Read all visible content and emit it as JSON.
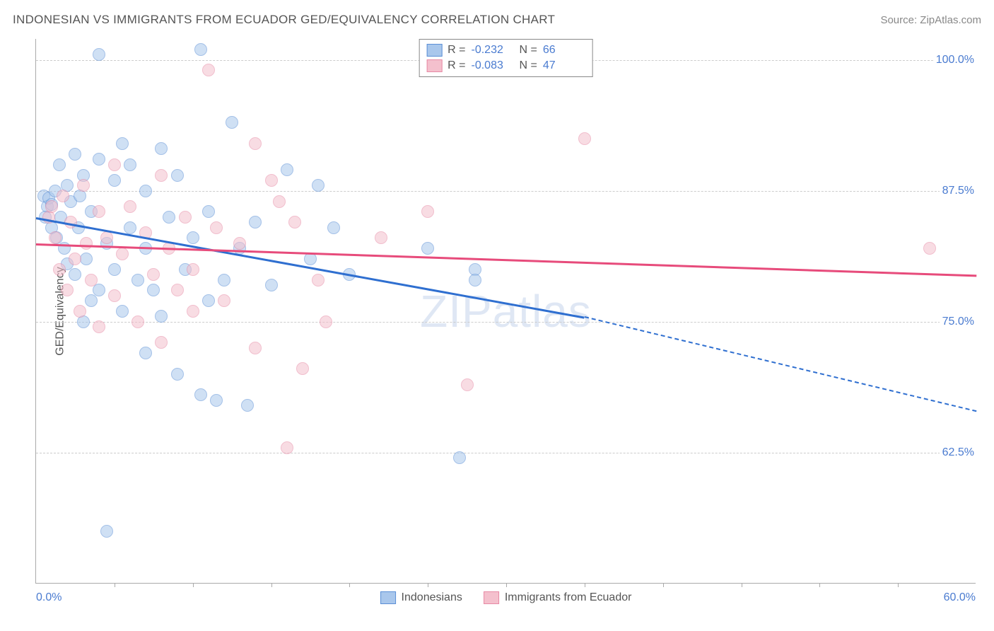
{
  "title": "INDONESIAN VS IMMIGRANTS FROM ECUADOR GED/EQUIVALENCY CORRELATION CHART",
  "source_label": "Source: ZipAtlas.com",
  "watermark": "ZIPatlas",
  "chart": {
    "type": "scatter",
    "yaxis_title": "GED/Equivalency",
    "xlim": [
      0.0,
      60.0
    ],
    "ylim": [
      50.0,
      102.0
    ],
    "xlim_labels": [
      "0.0%",
      "60.0%"
    ],
    "ytick_labels": [
      "62.5%",
      "75.0%",
      "87.5%",
      "100.0%"
    ],
    "ytick_values": [
      62.5,
      75.0,
      87.5,
      100.0
    ],
    "xtick_values": [
      5,
      10,
      15,
      20,
      25,
      30,
      35,
      40,
      45,
      50,
      55
    ],
    "grid_color": "#cccccc",
    "background_color": "#ffffff",
    "axis_color": "#aaaaaa",
    "label_color": "#4a7bd0",
    "title_color": "#555555",
    "title_fontsize": 17,
    "label_fontsize": 16,
    "marker_radius": 9,
    "marker_opacity": 0.55
  },
  "series": [
    {
      "name": "Indonesians",
      "fill_color": "#a9c7ec",
      "stroke_color": "#5b8fd6",
      "trend_color": "#2f6fd0",
      "R": "-0.232",
      "N": "66",
      "trend": {
        "x1": 0.0,
        "y1": 85.0,
        "x2_solid": 35.0,
        "y2_solid": 75.5,
        "x2": 60.0,
        "y2": 66.5
      },
      "points": [
        [
          0.5,
          87.0
        ],
        [
          0.7,
          86.0
        ],
        [
          0.8,
          86.8
        ],
        [
          0.6,
          85.0
        ],
        [
          1.0,
          86.2
        ],
        [
          1.0,
          84.0
        ],
        [
          1.2,
          87.5
        ],
        [
          1.3,
          83.0
        ],
        [
          1.5,
          90.0
        ],
        [
          1.6,
          85.0
        ],
        [
          1.8,
          82.0
        ],
        [
          2.0,
          88.0
        ],
        [
          2.0,
          80.5
        ],
        [
          2.2,
          86.5
        ],
        [
          2.5,
          79.5
        ],
        [
          2.5,
          91.0
        ],
        [
          2.7,
          84.0
        ],
        [
          2.8,
          87.0
        ],
        [
          3.0,
          75.0
        ],
        [
          3.0,
          89.0
        ],
        [
          3.2,
          81.0
        ],
        [
          3.5,
          77.0
        ],
        [
          3.5,
          85.5
        ],
        [
          4.0,
          90.5
        ],
        [
          4.0,
          78.0
        ],
        [
          4.0,
          100.5
        ],
        [
          4.5,
          82.5
        ],
        [
          4.5,
          55.0
        ],
        [
          5.0,
          88.5
        ],
        [
          5.0,
          80.0
        ],
        [
          5.5,
          92.0
        ],
        [
          5.5,
          76.0
        ],
        [
          6.0,
          84.0
        ],
        [
          6.0,
          90.0
        ],
        [
          6.5,
          79.0
        ],
        [
          7.0,
          82.0
        ],
        [
          7.0,
          87.5
        ],
        [
          7.0,
          72.0
        ],
        [
          7.5,
          78.0
        ],
        [
          8.0,
          91.5
        ],
        [
          8.0,
          75.5
        ],
        [
          8.5,
          85.0
        ],
        [
          9.0,
          89.0
        ],
        [
          9.0,
          70.0
        ],
        [
          9.5,
          80.0
        ],
        [
          10.0,
          83.0
        ],
        [
          10.5,
          101.0
        ],
        [
          10.5,
          68.0
        ],
        [
          11.0,
          77.0
        ],
        [
          11.0,
          85.5
        ],
        [
          11.5,
          67.5
        ],
        [
          12.0,
          79.0
        ],
        [
          12.5,
          94.0
        ],
        [
          13.0,
          82.0
        ],
        [
          13.5,
          67.0
        ],
        [
          14.0,
          84.5
        ],
        [
          15.0,
          78.5
        ],
        [
          16.0,
          89.5
        ],
        [
          17.5,
          81.0
        ],
        [
          18.0,
          88.0
        ],
        [
          19.0,
          84.0
        ],
        [
          20.0,
          79.5
        ],
        [
          25.0,
          82.0
        ],
        [
          27.0,
          62.0
        ],
        [
          28.0,
          80.0
        ],
        [
          28.0,
          79.0
        ]
      ]
    },
    {
      "name": "Immigrants from Ecuador",
      "fill_color": "#f4c0cd",
      "stroke_color": "#e78aa5",
      "trend_color": "#e74b7b",
      "R": "-0.083",
      "N": "47",
      "trend": {
        "x1": 0.0,
        "y1": 82.5,
        "x2_solid": 60.0,
        "y2_solid": 79.5,
        "x2": 60.0,
        "y2": 79.5
      },
      "points": [
        [
          0.8,
          85.0
        ],
        [
          1.0,
          86.0
        ],
        [
          1.2,
          83.0
        ],
        [
          1.5,
          80.0
        ],
        [
          1.7,
          87.0
        ],
        [
          2.0,
          78.0
        ],
        [
          2.2,
          84.5
        ],
        [
          2.5,
          81.0
        ],
        [
          2.8,
          76.0
        ],
        [
          3.0,
          88.0
        ],
        [
          3.2,
          82.5
        ],
        [
          3.5,
          79.0
        ],
        [
          4.0,
          85.5
        ],
        [
          4.0,
          74.5
        ],
        [
          4.5,
          83.0
        ],
        [
          5.0,
          90.0
        ],
        [
          5.0,
          77.5
        ],
        [
          5.5,
          81.5
        ],
        [
          6.0,
          86.0
        ],
        [
          6.5,
          75.0
        ],
        [
          7.0,
          83.5
        ],
        [
          7.5,
          79.5
        ],
        [
          8.0,
          89.0
        ],
        [
          8.0,
          73.0
        ],
        [
          8.5,
          82.0
        ],
        [
          9.0,
          78.0
        ],
        [
          9.5,
          85.0
        ],
        [
          10.0,
          80.0
        ],
        [
          10.0,
          76.0
        ],
        [
          11.0,
          99.0
        ],
        [
          11.5,
          84.0
        ],
        [
          12.0,
          77.0
        ],
        [
          13.0,
          82.5
        ],
        [
          14.0,
          92.0
        ],
        [
          14.0,
          72.5
        ],
        [
          15.0,
          88.5
        ],
        [
          15.5,
          86.5
        ],
        [
          16.0,
          63.0
        ],
        [
          16.5,
          84.5
        ],
        [
          17.0,
          70.5
        ],
        [
          18.0,
          79.0
        ],
        [
          18.5,
          75.0
        ],
        [
          22.0,
          83.0
        ],
        [
          25.0,
          85.5
        ],
        [
          27.5,
          69.0
        ],
        [
          35.0,
          92.5
        ],
        [
          57.0,
          82.0
        ]
      ]
    }
  ],
  "stats_labels": {
    "R": "R =",
    "N": "N ="
  },
  "legend_position": "bottom-center"
}
